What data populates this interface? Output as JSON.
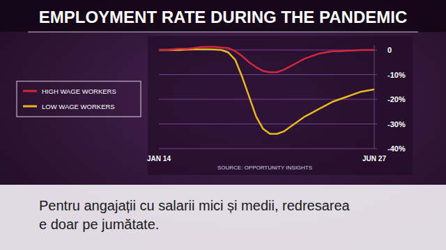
{
  "chart_data": {
    "type": "line",
    "title": "EMPLOYMENT RATE DURING THE PANDEMIC",
    "source": "SOURCE: OPPORTUNITY INSIGHTS",
    "caption": [
      "Pentru angajații cu salarii mici și medii, redresarea",
      "e doar pe jumătate."
    ],
    "categories": [
      "JAN 14",
      null,
      null,
      null,
      null,
      null,
      null,
      null,
      null,
      null,
      null,
      null,
      null,
      null,
      null,
      null,
      null,
      null,
      null,
      null,
      null,
      null,
      null,
      null,
      null,
      null,
      null,
      null,
      null,
      null,
      null,
      "JUN 27"
    ],
    "series": [
      {
        "name": "HIGH WAGE WORKERS",
        "color": "#d0283c",
        "values": [
          0,
          0,
          0.3,
          0.5,
          0.5,
          0.8,
          1.2,
          1.3,
          1.3,
          1.0,
          0.8,
          -0.5,
          -2.5,
          -5,
          -7,
          -8.5,
          -9,
          -9,
          -8,
          -6.5,
          -5,
          -3.5,
          -2.5,
          -1.5,
          -1,
          -0.5,
          -0.5,
          -0.3,
          -0.2,
          0,
          0,
          0
        ]
      },
      {
        "name": "LOW WAGE WORKERS",
        "color": "#e8b820",
        "values": [
          0,
          0,
          0,
          0,
          0.2,
          0.3,
          0.3,
          0.3,
          0.2,
          0,
          -1,
          -4,
          -11,
          -19,
          -27,
          -32,
          -34,
          -34,
          -33,
          -31,
          -29,
          -27,
          -25.5,
          -24,
          -22.5,
          -21,
          -20,
          -19,
          -18,
          -17,
          -16.5,
          -16
        ]
      }
    ],
    "ylim": [
      -40,
      2
    ],
    "yticks": [
      0,
      {
        "value": -10,
        "label": "-10%"
      },
      {
        "value": -20,
        "label": "-20%"
      },
      {
        "value": -30,
        "label": "-30%"
      },
      {
        "value": -40,
        "label": "-40%"
      }
    ],
    "grid": true,
    "legend": "left"
  }
}
